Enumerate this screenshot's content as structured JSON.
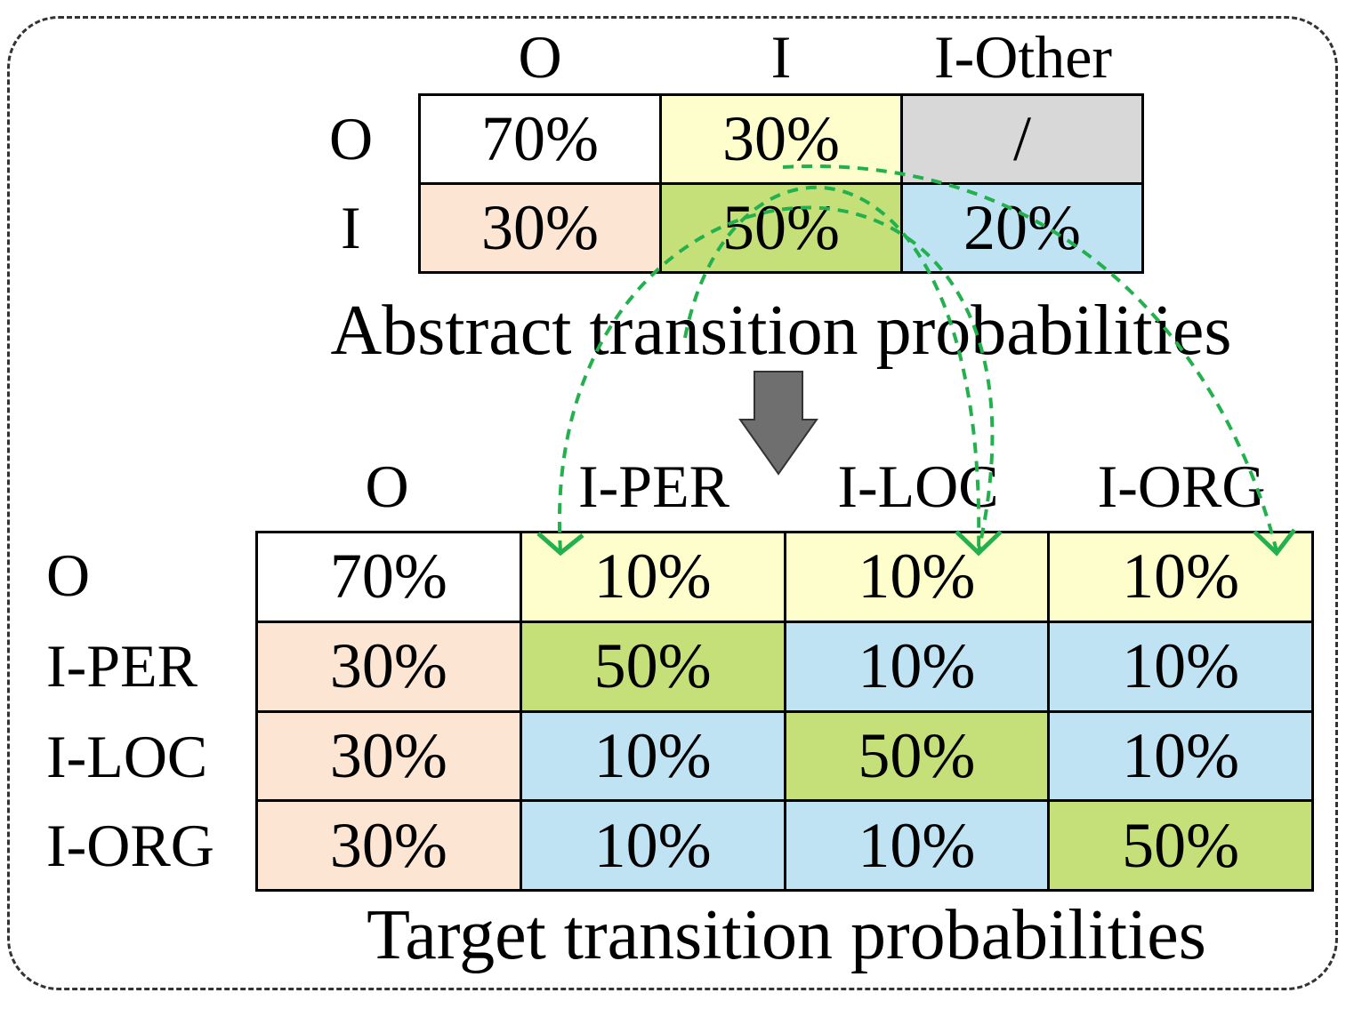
{
  "abstract": {
    "col_labels": [
      "O",
      "I",
      "I-Other"
    ],
    "row_labels": [
      "O",
      "I"
    ],
    "cells": [
      [
        "70%",
        "30%",
        "/"
      ],
      [
        "30%",
        "50%",
        "20%"
      ]
    ],
    "caption": "Abstract transition probabilities"
  },
  "target": {
    "col_labels": [
      "O",
      "I-PER",
      "I-LOC",
      "I-ORG"
    ],
    "row_labels": [
      "O",
      "I-PER",
      "I-LOC",
      "I-ORG"
    ],
    "cells": [
      [
        "70%",
        "10%",
        "10%",
        "10%"
      ],
      [
        "30%",
        "50%",
        "10%",
        "10%"
      ],
      [
        "30%",
        "10%",
        "50%",
        "10%"
      ],
      [
        "30%",
        "10%",
        "10%",
        "50%"
      ]
    ],
    "caption": "Target transition probabilities"
  },
  "colors": {
    "white": "#ffffff",
    "yellow": "#fefecc",
    "gray": "#d8d8d8",
    "peach": "#fde5d3",
    "green": "#c5df79",
    "blue": "#c0e3f4",
    "arrow_green": "#22b14c",
    "down_arrow": "#6f6f6f"
  }
}
